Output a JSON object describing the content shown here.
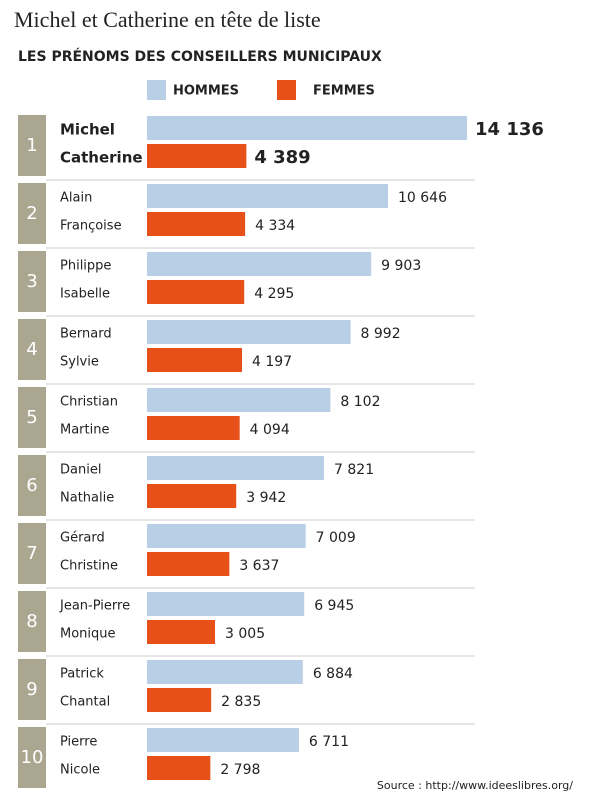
{
  "chart_data": {
    "type": "bar",
    "title": "Michel et Catherine en tête de liste",
    "subtitle": "LES PRÉNOMS DES CONSEILLERS MUNICIPAUX",
    "source": "Source : http://www.ideeslibres.org/",
    "categories": [
      "1",
      "2",
      "3",
      "4",
      "5",
      "6",
      "7",
      "8",
      "9",
      "10"
    ],
    "series": [
      {
        "name": "HOMMES",
        "color": "#b9cfe5",
        "names": [
          "Michel",
          "Alain",
          "Philippe",
          "Bernard",
          "Christian",
          "Daniel",
          "Gérard",
          "Jean-Pierre",
          "Patrick",
          "Pierre"
        ],
        "values": [
          14136,
          10646,
          9903,
          8992,
          8102,
          7821,
          7009,
          6945,
          6884,
          6711
        ],
        "value_labels": [
          "14 136",
          "10 646",
          "9 903",
          "8 992",
          "8 102",
          "7 821",
          "7 009",
          "6 945",
          "6 884",
          "6 711"
        ]
      },
      {
        "name": "FEMMES",
        "color": "#e8501a",
        "names": [
          "Catherine",
          "Françoise",
          "Isabelle",
          "Sylvie",
          "Martine",
          "Nathalie",
          "Christine",
          "Monique",
          "Chantal",
          "Nicole"
        ],
        "values": [
          4389,
          4334,
          4295,
          4197,
          4094,
          3942,
          3637,
          3005,
          2835,
          2798
        ],
        "value_labels": [
          "4 389",
          "4 334",
          "4 295",
          "4 197",
          "4 094",
          "3 942",
          "3 637",
          "3 005",
          "2 835",
          "2 798"
        ]
      }
    ]
  }
}
